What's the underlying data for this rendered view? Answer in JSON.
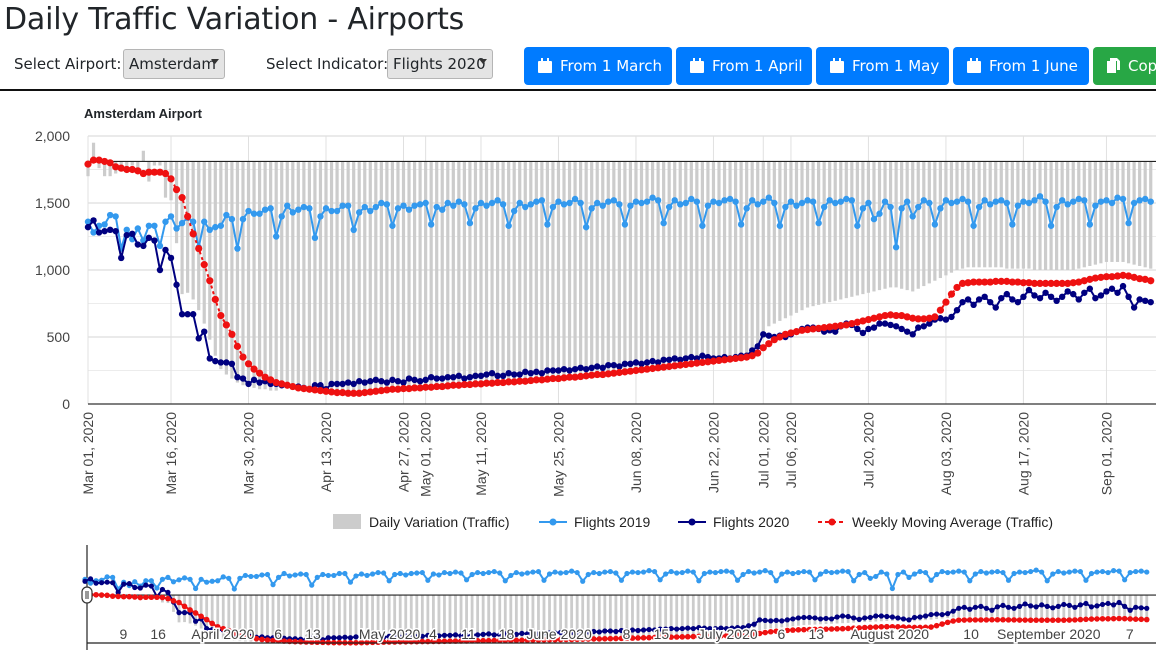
{
  "header": {
    "title": "Daily Traffic Variation - Airports"
  },
  "controls": {
    "airport_label": "Select Airport:",
    "airport_value": "Amsterdam",
    "indicator_label": "Select Indicator:",
    "indicator_value": "Flights 2020",
    "buttons": [
      {
        "label": "From 1 March",
        "icon": "calendar-icon"
      },
      {
        "label": "From 1 April",
        "icon": "calendar-icon"
      },
      {
        "label": "From 1 May",
        "icon": "calendar-icon"
      },
      {
        "label": "From 1 June",
        "icon": "calendar-icon"
      },
      {
        "label": "Cop",
        "icon": "copy-icon"
      }
    ]
  },
  "colors": {
    "button_blue": "#007bff",
    "button_green": "#28a745",
    "flights_2019": "#3399ee",
    "flights_2020": "#000080",
    "moving_average": "#ee1111",
    "variation": "#cccccc"
  },
  "chart_data": {
    "type": "line",
    "title": "Amsterdam Airport",
    "start_date": "2020-03-01",
    "ylim": [
      0,
      2000
    ],
    "yticks": [
      "0",
      "500",
      "1,000",
      "1,500",
      "2,000"
    ],
    "ytick_values": [
      0,
      500,
      1000,
      1500,
      2000
    ],
    "xtick_labels": [
      {
        "date": "2020-03-01",
        "label": "Mar 01, 2020"
      },
      {
        "date": "2020-03-16",
        "label": "Mar 16, 2020"
      },
      {
        "date": "2020-03-30",
        "label": "Mar 30, 2020"
      },
      {
        "date": "2020-04-13",
        "label": "Apr 13, 2020"
      },
      {
        "date": "2020-04-27",
        "label": "Apr 27, 2020"
      },
      {
        "date": "2020-05-01",
        "label": "May 01, 2020"
      },
      {
        "date": "2020-05-11",
        "label": "May 11, 2020"
      },
      {
        "date": "2020-05-25",
        "label": "May 25, 2020"
      },
      {
        "date": "2020-06-08",
        "label": "Jun 08, 2020"
      },
      {
        "date": "2020-06-22",
        "label": "Jun 22, 2020"
      },
      {
        "date": "2020-07-01",
        "label": "Jul 01, 2020"
      },
      {
        "date": "2020-07-06",
        "label": "Jul 06, 2020"
      },
      {
        "date": "2020-07-20",
        "label": "Jul 20, 2020"
      },
      {
        "date": "2020-08-03",
        "label": "Aug 03, 2020"
      },
      {
        "date": "2020-08-17",
        "label": "Aug 17, 2020"
      },
      {
        "date": "2020-09-01",
        "label": "Sep 01, 2020"
      }
    ],
    "legend": [
      "Daily Variation (Traffic)",
      "Flights 2019",
      "Flights 2020",
      "Weekly Moving Average (Traffic)"
    ],
    "legend_position": "bottom",
    "variation_baseline": 1810,
    "series": [
      {
        "name": "Flights 2019",
        "values": [
          1360,
          1280,
          1330,
          1340,
          1410,
          1400,
          1160,
          1300,
          1230,
          1310,
          1220,
          1330,
          1330,
          1180,
          1360,
          1400,
          1310,
          1350,
          1390,
          1360,
          1170,
          1360,
          1300,
          1320,
          1330,
          1410,
          1380,
          1160,
          1380,
          1440,
          1420,
          1420,
          1450,
          1460,
          1250,
          1400,
          1480,
          1430,
          1450,
          1470,
          1460,
          1240,
          1400,
          1460,
          1440,
          1440,
          1480,
          1480,
          1300,
          1430,
          1470,
          1440,
          1470,
          1500,
          1490,
          1330,
          1460,
          1480,
          1450,
          1480,
          1490,
          1500,
          1340,
          1470,
          1450,
          1500,
          1480,
          1510,
          1490,
          1350,
          1460,
          1500,
          1480,
          1500,
          1520,
          1490,
          1330,
          1440,
          1500,
          1470,
          1490,
          1510,
          1520,
          1340,
          1470,
          1510,
          1490,
          1500,
          1530,
          1500,
          1320,
          1460,
          1500,
          1480,
          1510,
          1520,
          1490,
          1340,
          1480,
          1510,
          1500,
          1510,
          1540,
          1520,
          1350,
          1470,
          1520,
          1490,
          1500,
          1530,
          1510,
          1330,
          1480,
          1510,
          1500,
          1520,
          1530,
          1510,
          1340,
          1460,
          1520,
          1490,
          1510,
          1540,
          1500,
          1330,
          1470,
          1510,
          1480,
          1500,
          1520,
          1510,
          1350,
          1470,
          1520,
          1500,
          1510,
          1530,
          1520,
          1330,
          1460,
          1500,
          1380,
          1420,
          1510,
          1470,
          1170,
          1460,
          1510,
          1400,
          1470,
          1520,
          1500,
          1340,
          1460,
          1520,
          1500,
          1510,
          1530,
          1510,
          1330,
          1470,
          1520,
          1490,
          1510,
          1520,
          1500,
          1340,
          1480,
          1510,
          1500,
          1520,
          1550,
          1510,
          1330,
          1470,
          1520,
          1490,
          1510,
          1530,
          1520,
          1340,
          1480,
          1510,
          1520,
          1500,
          1540,
          1530,
          1350,
          1500,
          1520,
          1530,
          1510
        ]
      },
      {
        "name": "Flights 2020",
        "values": [
          1320,
          1370,
          1280,
          1290,
          1300,
          1290,
          1090,
          1260,
          1270,
          1190,
          1180,
          1240,
          1220,
          1000,
          1150,
          1090,
          890,
          670,
          670,
          670,
          490,
          540,
          340,
          320,
          310,
          310,
          300,
          200,
          190,
          150,
          180,
          160,
          170,
          150,
          150,
          140,
          140,
          130,
          130,
          120,
          110,
          140,
          140,
          110,
          150,
          150,
          150,
          160,
          150,
          170,
          160,
          170,
          180,
          170,
          160,
          180,
          170,
          160,
          190,
          180,
          170,
          180,
          200,
          190,
          190,
          200,
          200,
          210,
          190,
          200,
          210,
          210,
          220,
          230,
          210,
          210,
          230,
          220,
          220,
          240,
          230,
          240,
          230,
          250,
          250,
          250,
          260,
          250,
          260,
          270,
          260,
          270,
          280,
          270,
          290,
          290,
          280,
          300,
          300,
          310,
          300,
          310,
          320,
          310,
          330,
          330,
          340,
          330,
          340,
          350,
          340,
          360,
          350,
          340,
          340,
          350,
          340,
          350,
          360,
          360,
          400,
          430,
          520,
          510,
          500,
          510,
          500,
          520,
          540,
          560,
          570,
          570,
          560,
          540,
          550,
          540,
          580,
          600,
          590,
          560,
          530,
          560,
          570,
          600,
          600,
          590,
          580,
          560,
          540,
          520,
          570,
          580,
          600,
          630,
          640,
          630,
          650,
          700,
          760,
          780,
          740,
          780,
          800,
          760,
          720,
          790,
          820,
          780,
          760,
          800,
          850,
          810,
          790,
          830,
          800,
          770,
          800,
          840,
          820,
          780,
          830,
          860,
          790,
          810,
          840,
          860,
          830,
          880,
          800,
          720,
          780,
          770,
          760
        ]
      },
      {
        "name": "Weekly Moving Average (Traffic)",
        "values": [
          1790,
          1820,
          1820,
          1810,
          1800,
          1770,
          1760,
          1750,
          1750,
          1740,
          1720,
          1730,
          1730,
          1730,
          1720,
          1680,
          1600,
          1540,
          1400,
          1270,
          1160,
          1040,
          920,
          780,
          660,
          590,
          520,
          430,
          350,
          300,
          260,
          230,
          200,
          180,
          160,
          150,
          140,
          130,
          120,
          115,
          110,
          105,
          100,
          95,
          90,
          85,
          85,
          80,
          80,
          80,
          85,
          90,
          95,
          100,
          105,
          110,
          110,
          115,
          115,
          120,
          120,
          125,
          125,
          130,
          130,
          135,
          140,
          140,
          145,
          145,
          150,
          150,
          155,
          155,
          160,
          160,
          165,
          165,
          170,
          170,
          175,
          180,
          180,
          185,
          190,
          190,
          195,
          200,
          200,
          205,
          210,
          215,
          220,
          220,
          225,
          230,
          235,
          240,
          245,
          250,
          255,
          260,
          265,
          270,
          275,
          280,
          285,
          290,
          295,
          300,
          305,
          310,
          315,
          320,
          325,
          330,
          335,
          340,
          345,
          350,
          360,
          380,
          420,
          450,
          480,
          500,
          520,
          530,
          540,
          550,
          555,
          560,
          565,
          570,
          575,
          580,
          585,
          590,
          600,
          610,
          620,
          630,
          640,
          650,
          660,
          665,
          660,
          660,
          650,
          640,
          635,
          635,
          640,
          650,
          700,
          760,
          820,
          870,
          900,
          905,
          910,
          910,
          910,
          910,
          915,
          915,
          915,
          910,
          910,
          905,
          905,
          900,
          900,
          900,
          900,
          900,
          900,
          900,
          905,
          910,
          920,
          930,
          940,
          945,
          950,
          950,
          955,
          960,
          955,
          945,
          935,
          930,
          920
        ]
      },
      {
        "name": "Daily Variation (Traffic)",
        "values": [
          1700,
          1950,
          1760,
          1700,
          1700,
          1720,
          1750,
          1760,
          1780,
          1720,
          1890,
          1660,
          1780,
          1780,
          1540,
          1520,
          1200,
          820,
          830,
          780,
          700,
          600,
          480,
          360,
          260,
          220,
          190,
          160,
          140,
          130,
          120,
          110,
          110,
          100,
          100,
          150,
          140,
          130,
          120,
          115,
          110,
          105,
          100,
          95,
          90,
          85,
          85,
          80,
          80,
          80,
          85,
          90,
          95,
          100,
          105,
          110,
          110,
          115,
          115,
          120,
          120,
          125,
          125,
          130,
          130,
          135,
          140,
          140,
          145,
          145,
          150,
          150,
          155,
          155,
          160,
          160,
          165,
          165,
          170,
          170,
          175,
          180,
          180,
          185,
          190,
          190,
          195,
          200,
          200,
          205,
          210,
          215,
          220,
          220,
          225,
          230,
          235,
          240,
          245,
          250,
          255,
          260,
          265,
          270,
          275,
          280,
          285,
          290,
          295,
          300,
          305,
          310,
          315,
          320,
          325,
          330,
          335,
          340,
          345,
          350,
          370,
          420,
          540,
          580,
          600,
          620,
          640,
          660,
          680,
          700,
          720,
          730,
          740,
          750,
          760,
          770,
          780,
          790,
          800,
          810,
          820,
          830,
          840,
          850,
          860,
          870,
          870,
          860,
          850,
          840,
          860,
          880,
          900,
          920,
          940,
          960,
          980,
          1000,
          1010,
          1020,
          1020,
          1020,
          1020,
          1020,
          1020,
          1020,
          1010,
          1010,
          1010,
          1010,
          1010,
          1000,
          1000,
          1000,
          1000,
          1000,
          1000,
          1000,
          1000,
          1010,
          1020,
          1030,
          1040,
          1050,
          1060,
          1060,
          1060,
          1060,
          1050,
          1040,
          1030,
          1020,
          1010
        ]
      }
    ],
    "navigator_labels": [
      {
        "date": "2020-03-09",
        "label": "9"
      },
      {
        "date": "2020-03-16",
        "label": "16"
      },
      {
        "date": "2020-04-01",
        "label": "April 2020"
      },
      {
        "date": "2020-04-06",
        "label": "6"
      },
      {
        "date": "2020-04-13",
        "label": "13"
      },
      {
        "date": "2020-05-01",
        "label": "May 2020"
      },
      {
        "date": "2020-05-04",
        "label": "4"
      },
      {
        "date": "2020-05-11",
        "label": "11"
      },
      {
        "date": "2020-05-18",
        "label": "18"
      },
      {
        "date": "2020-06-01",
        "label": "June 2020"
      },
      {
        "date": "2020-06-08",
        "label": "8"
      },
      {
        "date": "2020-06-15",
        "label": "15"
      },
      {
        "date": "2020-07-01",
        "label": "July 2020"
      },
      {
        "date": "2020-07-06",
        "label": "6"
      },
      {
        "date": "2020-07-13",
        "label": "13"
      },
      {
        "date": "2020-08-01",
        "label": "August 2020"
      },
      {
        "date": "2020-08-10",
        "label": "10"
      },
      {
        "date": "2020-09-01",
        "label": "September 2020"
      },
      {
        "date": "2020-09-07",
        "label": "7"
      }
    ]
  }
}
